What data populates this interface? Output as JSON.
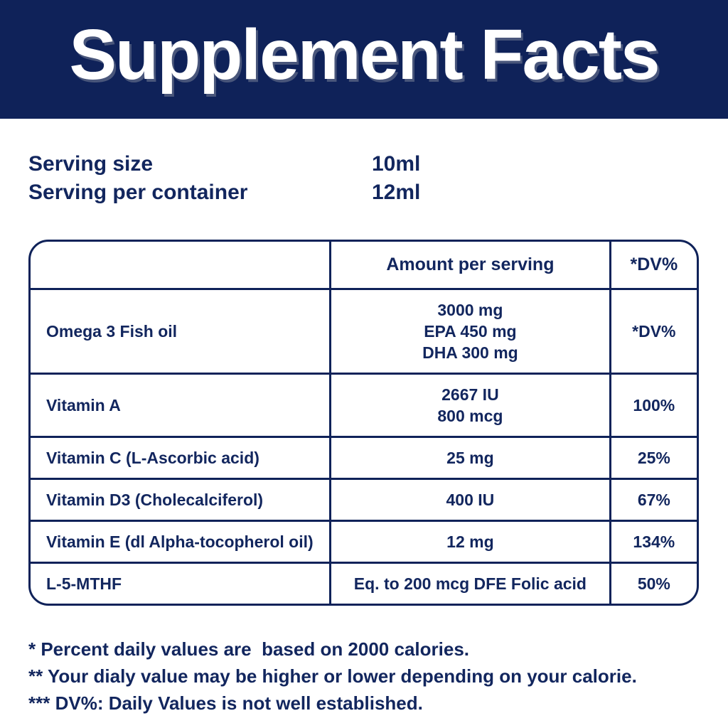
{
  "colors": {
    "banner_background": "#0f2259",
    "title_text": "#ffffff",
    "body_text": "#12265e"
  },
  "header": {
    "title": "Supplement Facts"
  },
  "serving": {
    "rows": [
      {
        "label": "Serving size",
        "value": "10ml"
      },
      {
        "label": "Serving per container",
        "value": "12ml"
      }
    ]
  },
  "table": {
    "columns": [
      "",
      "Amount per serving",
      "*DV%"
    ],
    "rows": [
      {
        "name": "Omega 3 Fish oil",
        "amount_lines": [
          "3000 mg",
          "EPA 450 mg",
          "DHA 300 mg"
        ],
        "dv": "*DV%"
      },
      {
        "name": "Vitamin A",
        "amount_lines": [
          "2667 IU",
          "800 mcg"
        ],
        "dv": "100%"
      },
      {
        "name": "Vitamin C (L-Ascorbic acid)",
        "amount_lines": [
          "25 mg"
        ],
        "dv": "25%"
      },
      {
        "name": "Vitamin D3 (Cholecalciferol)",
        "amount_lines": [
          "400 IU"
        ],
        "dv": "67%"
      },
      {
        "name": "Vitamin E (dl Alpha-tocopherol oil)",
        "amount_lines": [
          "12 mg"
        ],
        "dv": "134%"
      },
      {
        "name": "L-5-MTHF",
        "amount_lines": [
          "Eq. to 200 mcg DFE Folic acid"
        ],
        "dv": "50%"
      }
    ]
  },
  "footnotes": [
    "* Percent daily values are  based on 2000 calories.",
    "** Your dialy value may be higher or lower depending on your calorie.",
    "*** DV%: Daily Values is not well established."
  ]
}
